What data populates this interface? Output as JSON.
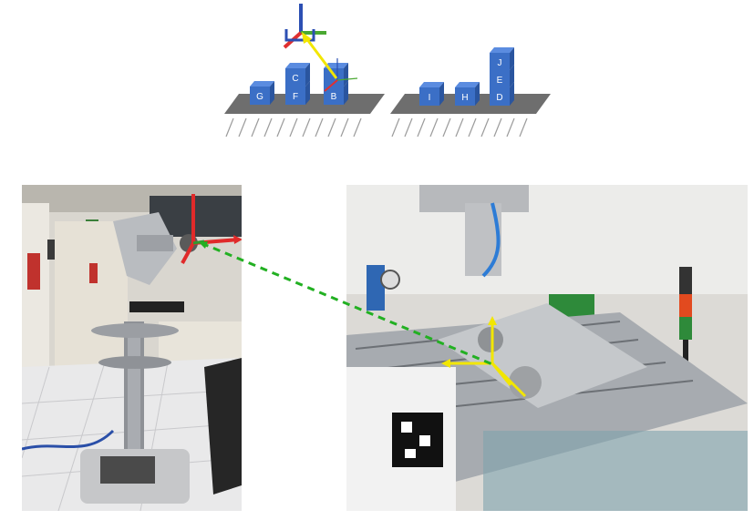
{
  "diagram": {
    "block_labels": {
      "g": "G",
      "c": "C",
      "f": "F",
      "b": "B",
      "i": "I",
      "h": "H",
      "j": "J",
      "e": "E",
      "d": "D"
    },
    "colors": {
      "block": "#3b6fc6",
      "table": "#6e6e6e",
      "axis_x": "#e03030",
      "axis_y": "#4aa832",
      "axis_z": "#2c4fb3",
      "arrow": "#f2e600"
    }
  },
  "overlay": {
    "link_color": "#22b022"
  }
}
